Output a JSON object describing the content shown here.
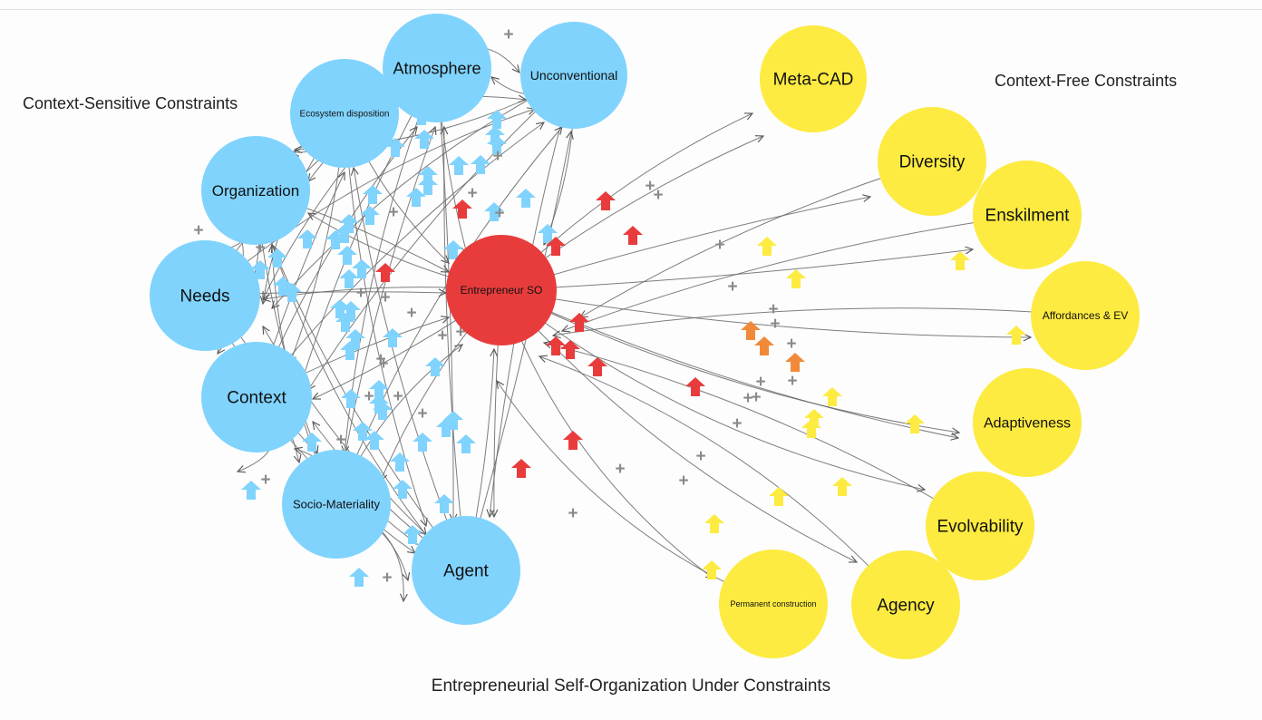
{
  "caption": "Entrepreneurial Self-Organization Under Constraints",
  "region_labels": {
    "context_sensitive": "Context-Sensitive Constraints",
    "context_free": "Context-Free Constraints"
  },
  "colors": {
    "context_sensitive": "#80d3fd",
    "context_free": "#fdeb41",
    "center": "#e83c3c",
    "mixed": "#f08a3a",
    "edge": "#666666",
    "plus": "#8a8a8a"
  },
  "nodes": [
    {
      "id": "atmosphere",
      "label": "Atmosphere",
      "group": "context_sensitive"
    },
    {
      "id": "unconventional",
      "label": "Unconventional",
      "group": "context_sensitive"
    },
    {
      "id": "ecosystem",
      "label": "Ecosystem disposition",
      "group": "context_sensitive"
    },
    {
      "id": "organization",
      "label": "Organization",
      "group": "context_sensitive"
    },
    {
      "id": "needs",
      "label": "Needs",
      "group": "context_sensitive"
    },
    {
      "id": "context",
      "label": "Context",
      "group": "context_sensitive"
    },
    {
      "id": "socio",
      "label": "Socio-Materiality",
      "group": "context_sensitive"
    },
    {
      "id": "agent",
      "label": "Agent",
      "group": "context_sensitive"
    },
    {
      "id": "center",
      "label": "Entrepreneur SO",
      "group": "center"
    },
    {
      "id": "metacad",
      "label": "Meta-CAD",
      "group": "context_free"
    },
    {
      "id": "diversity",
      "label": "Diversity",
      "group": "context_free"
    },
    {
      "id": "enskilment",
      "label": "Enskilment",
      "group": "context_free"
    },
    {
      "id": "affordances",
      "label": "Affordances & EV",
      "group": "context_free"
    },
    {
      "id": "adaptiveness",
      "label": "Adaptiveness",
      "group": "context_free"
    },
    {
      "id": "evolvability",
      "label": "Evolvability",
      "group": "context_free"
    },
    {
      "id": "agency",
      "label": "Agency",
      "group": "context_free"
    },
    {
      "id": "permanent",
      "label": "Permanent construction",
      "group": "context_free"
    }
  ],
  "plus_symbol": "+"
}
